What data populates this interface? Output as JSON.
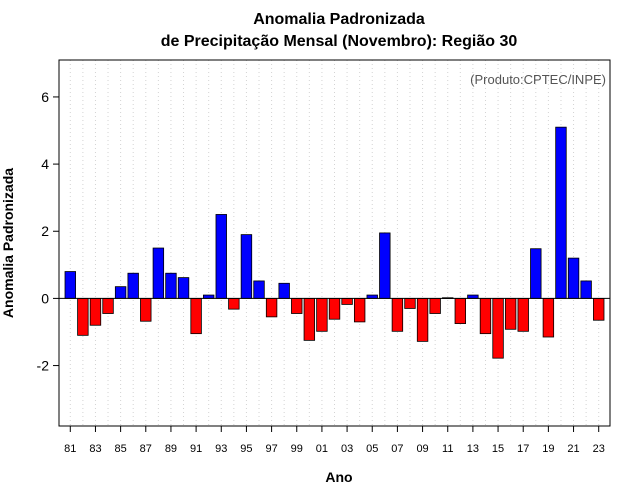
{
  "chart_data": {
    "type": "bar",
    "title_line1": "Anomalia Padronizada",
    "title_line2": "de Precipitação Mensal (Novembro): Região 30",
    "xlabel": "Ano",
    "ylabel": "Anomalia Padronizada",
    "annotation": "(Produto:CPTEC/INPE)",
    "ylim": [
      -3.8,
      7.1
    ],
    "yticks": [
      -2,
      0,
      2,
      4,
      6
    ],
    "grid": true,
    "colors": {
      "positive": "#0000ff",
      "negative": "#ff0000",
      "edge": "#000000",
      "grid": "#d3d3d3"
    },
    "categories": [
      "81",
      "82",
      "83",
      "84",
      "85",
      "86",
      "87",
      "88",
      "89",
      "90",
      "91",
      "92",
      "93",
      "94",
      "95",
      "96",
      "97",
      "98",
      "99",
      "00",
      "01",
      "02",
      "03",
      "04",
      "05",
      "06",
      "07",
      "08",
      "09",
      "10",
      "11",
      "12",
      "13",
      "14",
      "15",
      "16",
      "17",
      "18",
      "19",
      "20",
      "21",
      "22",
      "23"
    ],
    "xtick_labels": [
      "81",
      "83",
      "85",
      "87",
      "89",
      "91",
      "93",
      "95",
      "97",
      "99",
      "01",
      "03",
      "05",
      "07",
      "09",
      "11",
      "13",
      "15",
      "17",
      "19",
      "21",
      "23"
    ],
    "values": [
      0.8,
      -1.1,
      -0.8,
      -0.45,
      0.35,
      0.75,
      -0.68,
      1.5,
      0.75,
      0.62,
      -1.05,
      0.1,
      2.5,
      -0.32,
      1.9,
      0.52,
      -0.55,
      0.45,
      -0.45,
      -1.25,
      -0.98,
      -0.62,
      -0.18,
      -0.7,
      0.1,
      1.95,
      -0.98,
      -0.3,
      -1.28,
      -0.45,
      0.02,
      -0.75,
      0.1,
      -1.05,
      -1.78,
      -0.92,
      -0.98,
      1.48,
      -1.15,
      5.1,
      1.2,
      0.52,
      -0.65
    ]
  }
}
